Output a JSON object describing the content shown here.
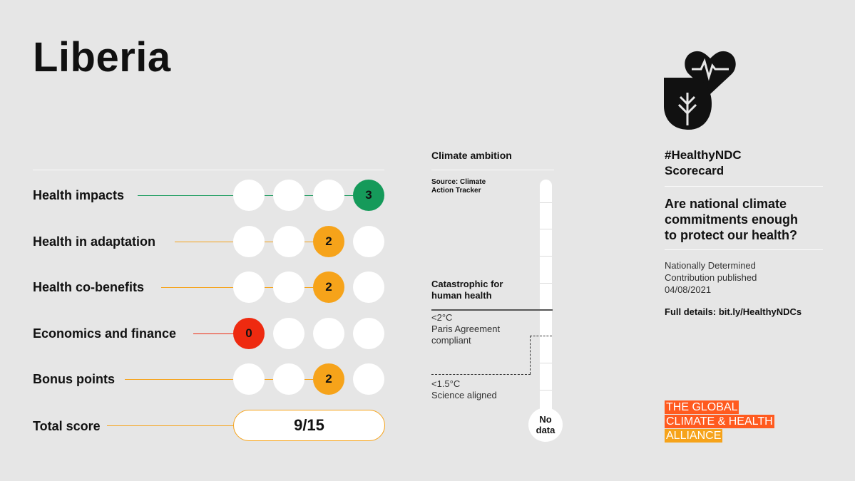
{
  "country": "Liberia",
  "rows": [
    {
      "label": "Health impacts",
      "score": "3",
      "position": 3,
      "color": "#159a5a"
    },
    {
      "label": "Health in adaptation",
      "score": "2",
      "position": 2,
      "color": "#f6a31a"
    },
    {
      "label": "Health co-benefits",
      "score": "2",
      "position": 2,
      "color": "#f6a31a"
    },
    {
      "label": "Economics and finance",
      "score": "0",
      "position": 0,
      "color": "#ee2a10"
    },
    {
      "label": "Bonus points",
      "score": "2",
      "position": 2,
      "color": "#f6a31a"
    }
  ],
  "total": {
    "label": "Total score",
    "value": "9/15",
    "color": "#f6a31a"
  },
  "ambition": {
    "title": "Climate ambition",
    "source": [
      "Source: Climate",
      "Action Tracker"
    ],
    "catastrophic": [
      "Catastrophic for",
      "human health"
    ],
    "paris": [
      "<2°C",
      "Paris Agreement",
      "compliant"
    ],
    "science": [
      "<1.5°C",
      "Science aligned"
    ],
    "no_data": [
      "No",
      "data"
    ]
  },
  "sidebar": {
    "icon": "heart-leaf-icon",
    "hashtag": [
      "#HealthyNDC",
      "Scorecard"
    ],
    "question": [
      "Are national climate",
      "commitments enough",
      "to protect our health?"
    ],
    "published": [
      "Nationally Determined",
      "Contribution published",
      "04/08/2021"
    ],
    "details": "Full details: bit.ly/HealthyNDCs",
    "alliance": [
      "THE GLOBAL",
      "CLIMATE & HEALTH",
      "ALLIANCE"
    ]
  }
}
